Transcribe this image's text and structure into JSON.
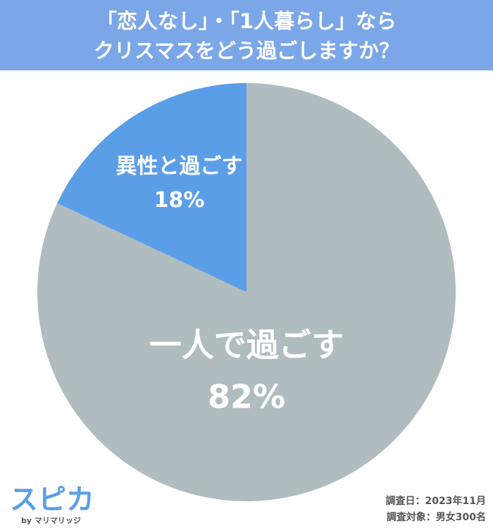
{
  "chart_data": {
    "type": "pie",
    "title": [
      "「恋人なし」・「1人暮らし」なら",
      "クリスマスをどう過ごしますか？"
    ],
    "categories": [
      "一人で過ごす",
      "異性と過ごす"
    ],
    "values": [
      82,
      18
    ],
    "value_labels": [
      "82%",
      "18%"
    ],
    "colors": [
      "#b0bcbf",
      "#5b9ee8"
    ],
    "notes": [
      "調査日：2023年11月",
      "調査対象：男女300名"
    ],
    "logo": {
      "name": "スピカ",
      "byline": "by マリマリッジ"
    }
  }
}
